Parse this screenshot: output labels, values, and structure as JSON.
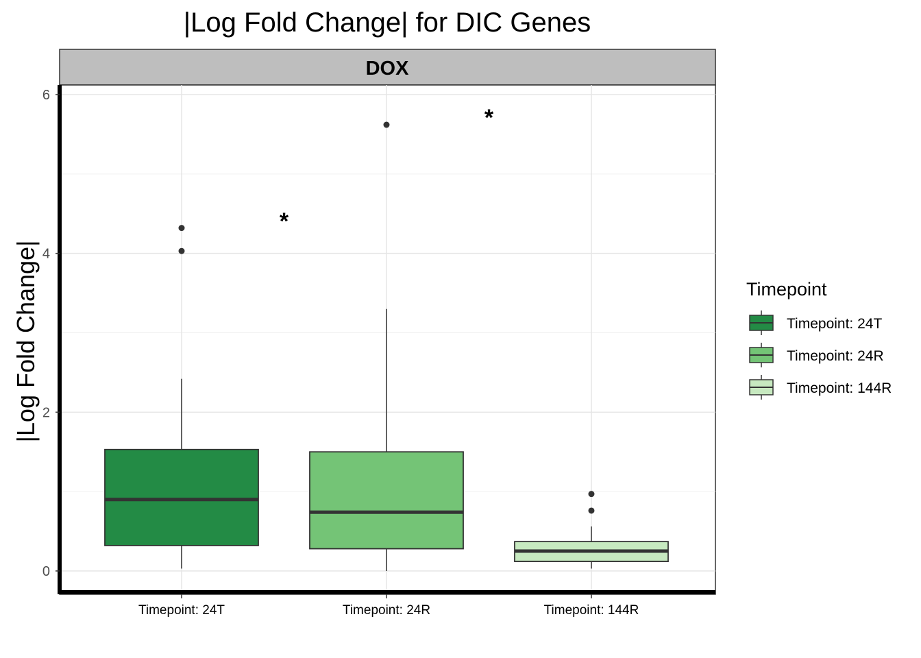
{
  "chart_data": {
    "type": "box",
    "title": "|Log Fold Change| for DIC Genes",
    "facet": "DOX",
    "ylabel": "|Log Fold Change|",
    "xlabel": "",
    "ylim": [
      -0.3,
      6.1
    ],
    "yticks": [
      0,
      2,
      4,
      6
    ],
    "grid": true,
    "legend": {
      "title": "Timepoint",
      "position": "right",
      "entries": [
        "Timepoint: 24T",
        "Timepoint: 24R",
        "Timepoint: 144R"
      ]
    },
    "categories": [
      "Timepoint: 24T",
      "Timepoint: 24R",
      "Timepoint: 144R"
    ],
    "boxes": [
      {
        "name": "Timepoint: 24T",
        "whisker_low": 0.03,
        "q1": 0.32,
        "median": 0.9,
        "q3": 1.53,
        "whisker_high": 2.42,
        "outliers": [
          4.03,
          4.32
        ],
        "color": "#238b45"
      },
      {
        "name": "Timepoint: 24R",
        "whisker_low": 0.0,
        "q1": 0.28,
        "median": 0.74,
        "q3": 1.5,
        "whisker_high": 3.3,
        "outliers": [
          5.62
        ],
        "color": "#74c476"
      },
      {
        "name": "Timepoint: 144R",
        "whisker_low": 0.03,
        "q1": 0.12,
        "median": 0.25,
        "q3": 0.37,
        "whisker_high": 0.56,
        "outliers": [
          0.76,
          0.97
        ],
        "color": "#c7e9c0"
      }
    ],
    "annotations": [
      {
        "label": "*",
        "x": 1.5,
        "y": 4.5
      },
      {
        "label": "*",
        "x": 2.5,
        "y": 5.8
      }
    ]
  }
}
